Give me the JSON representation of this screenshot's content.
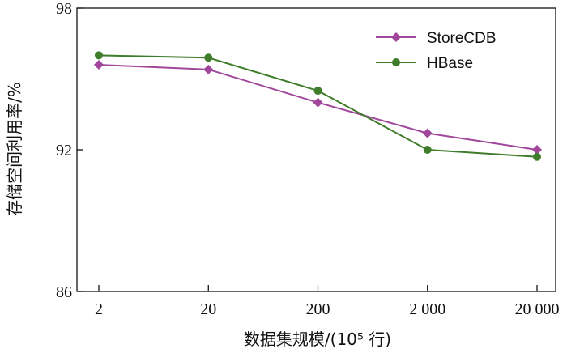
{
  "chart_data": {
    "type": "line",
    "xlabel": "数据集规模/(10⁵ 行)",
    "ylabel": "存储空间利用率/%",
    "categories": [
      "2",
      "20",
      "200",
      "2 000",
      "20 000"
    ],
    "ylim": [
      86,
      98
    ],
    "yticks": [
      "86",
      "92",
      "98"
    ],
    "grid": false,
    "legend_position": "top-right",
    "series": [
      {
        "name": "StoreCDB",
        "marker": "diamond",
        "color": "#a0479b",
        "values": [
          95.6,
          95.4,
          94.0,
          92.7,
          92.0
        ]
      },
      {
        "name": "HBase",
        "marker": "circle",
        "color": "#3f7d2b",
        "values": [
          96.0,
          95.9,
          94.5,
          92.0,
          91.7
        ]
      }
    ]
  }
}
